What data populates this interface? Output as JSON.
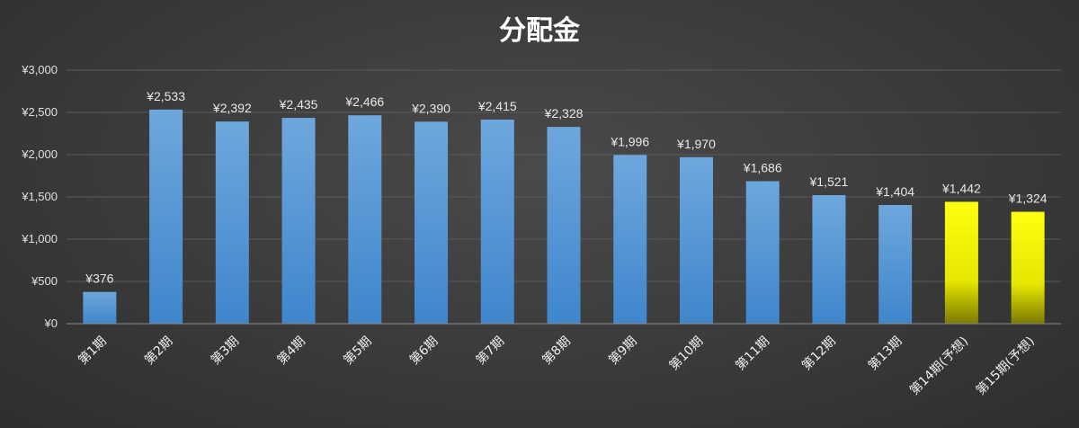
{
  "chart_data": {
    "type": "bar",
    "title": "分配金",
    "categories": [
      "第1期",
      "第2期",
      "第3期",
      "第4期",
      "第5期",
      "第6期",
      "第7期",
      "第8期",
      "第9期",
      "第10期",
      "第11期",
      "第12期",
      "第13期",
      "第14期(予想)",
      "第15期(予想)"
    ],
    "values": [
      376,
      2533,
      2392,
      2435,
      2466,
      2390,
      2415,
      2328,
      1996,
      1970,
      1686,
      1521,
      1404,
      1442,
      1324
    ],
    "data_labels": [
      "¥376",
      "¥2,533",
      "¥2,392",
      "¥2,435",
      "¥2,466",
      "¥2,390",
      "¥2,415",
      "¥2,328",
      "¥1,996",
      "¥1,970",
      "¥1,686",
      "¥1,521",
      "¥1,404",
      "¥1,442",
      "¥1,324"
    ],
    "bar_kinds": [
      "actual",
      "actual",
      "actual",
      "actual",
      "actual",
      "actual",
      "actual",
      "actual",
      "actual",
      "actual",
      "actual",
      "actual",
      "actual",
      "forecast",
      "forecast"
    ],
    "colors": {
      "actual": "#5b9bd5",
      "forecast": "#ffff00"
    },
    "yticks": [
      0,
      500,
      1000,
      1500,
      2000,
      2500,
      3000
    ],
    "ytick_labels": [
      "¥0",
      "¥500",
      "¥1,000",
      "¥1,500",
      "¥2,000",
      "¥2,500",
      "¥3,000"
    ],
    "ylim": [
      0,
      3000
    ],
    "grid": true,
    "legend": "none",
    "xlabel": "",
    "ylabel": ""
  }
}
